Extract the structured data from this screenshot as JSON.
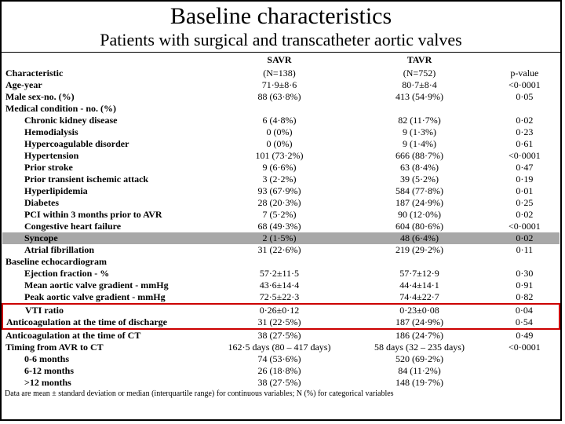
{
  "title": "Baseline characteristics",
  "subtitle": "Patients with surgical and transcatheter aortic valves",
  "headers": {
    "savr": "SAVR",
    "tavr": "TAVR"
  },
  "rows": [
    {
      "label": "Characteristic",
      "savr": "(N=138)",
      "tavr": "(N=752)",
      "p": "p-value",
      "bold": true
    },
    {
      "label": "Age-year",
      "savr": "71·9±8·6",
      "tavr": "80·7±8·4",
      "p": "<0·0001",
      "bold": true
    },
    {
      "label": "Male sex-no. (%)",
      "savr": "88 (63·8%)",
      "tavr": "413 (54·9%)",
      "p": "0·05",
      "bold": true
    },
    {
      "label": "Medical condition - no. (%)",
      "savr": "",
      "tavr": "",
      "p": "",
      "bold": true
    },
    {
      "label": "Chronic kidney disease",
      "savr": "6 (4·8%)",
      "tavr": "82 (11·7%)",
      "p": "0·02",
      "bold": true,
      "indent": true
    },
    {
      "label": "Hemodialysis",
      "savr": "0 (0%)",
      "tavr": "9 (1·3%)",
      "p": "0·23",
      "bold": true,
      "indent": true
    },
    {
      "label": "Hypercoagulable disorder",
      "savr": "0 (0%)",
      "tavr": "9 (1·4%)",
      "p": "0·61",
      "bold": true,
      "indent": true
    },
    {
      "label": "Hypertension",
      "savr": "101 (73·2%)",
      "tavr": "666 (88·7%)",
      "p": "<0·0001",
      "bold": true,
      "indent": true
    },
    {
      "label": "Prior stroke",
      "savr": "9 (6·6%)",
      "tavr": "63 (8·4%)",
      "p": "0·47",
      "bold": true,
      "indent": true
    },
    {
      "label": "Prior transient ischemic attack",
      "savr": "3 (2·2%)",
      "tavr": "39 (5·2%)",
      "p": "0·19",
      "bold": true,
      "indent": true
    },
    {
      "label": "Hyperlipidemia",
      "savr": "93 (67·9%)",
      "tavr": "584 (77·8%)",
      "p": "0·01",
      "bold": true,
      "indent": true
    },
    {
      "label": "Diabetes",
      "savr": "28 (20·3%)",
      "tavr": "187 (24·9%)",
      "p": "0·25",
      "bold": true,
      "indent": true
    },
    {
      "label": "PCI within 3 months prior to AVR",
      "savr": "7 (5·2%)",
      "tavr": "90 (12·0%)",
      "p": "0·02",
      "bold": true,
      "indent": true
    },
    {
      "label": "Congestive heart failure",
      "savr": "68 (49·3%)",
      "tavr": "604 (80·6%)",
      "p": "<0·0001",
      "bold": true,
      "indent": true
    },
    {
      "label": "Syncope",
      "savr": "2 (1·5%)",
      "tavr": "48 (6·4%)",
      "p": "0·02",
      "bold": true,
      "indent": true,
      "gray": true
    },
    {
      "label": "Atrial fibrillation",
      "savr": "31 (22·6%)",
      "tavr": "219 (29·2%)",
      "p": "0·11",
      "bold": true,
      "indent": true
    },
    {
      "label": "Baseline echocardiogram",
      "savr": "",
      "tavr": "",
      "p": "",
      "bold": true
    },
    {
      "label": "Ejection fraction - %",
      "savr": "57·2±11·5",
      "tavr": "57·7±12·9",
      "p": "0·30",
      "bold": true,
      "indent": true
    },
    {
      "label": "Mean aortic valve gradient - mmHg",
      "savr": "43·6±14·4",
      "tavr": "44·4±14·1",
      "p": "0·91",
      "bold": true,
      "indent": true
    },
    {
      "label": "Peak aortic valve gradient - mmHg",
      "savr": "72·5±22·3",
      "tavr": "74·4±22·7",
      "p": "0·82",
      "bold": true,
      "indent": true
    },
    {
      "label": "VTI ratio",
      "savr": "0·26±0·12",
      "tavr": "0·23±0·08",
      "p": "0·04",
      "bold": true,
      "indent": true,
      "redtop": true
    },
    {
      "label": "Anticoagulation at the time of discharge",
      "savr": "31 (22·5%)",
      "tavr": "187 (24·9%)",
      "p": "0·54",
      "bold": true,
      "redbottom": true
    },
    {
      "label": "Anticoagulation at the time of CT",
      "savr": "38 (27·5%)",
      "tavr": "186 (24·7%)",
      "p": "0·49",
      "bold": true
    },
    {
      "label": "Timing from AVR to CT",
      "savr": "162·5 days (80 – 417 days)",
      "tavr": "58 days (32 – 235 days)",
      "p": "<0·0001",
      "bold": true
    },
    {
      "label": "0-6 months",
      "savr": "74 (53·6%)",
      "tavr": "520 (69·2%)",
      "p": "",
      "bold": true,
      "indent": true
    },
    {
      "label": "6-12 months",
      "savr": "26 (18·8%)",
      "tavr": "84 (11·2%)",
      "p": "",
      "bold": true,
      "indent": true
    },
    {
      "label": ">12 months",
      "savr": "38 (27·5%)",
      "tavr": "148 (19·7%)",
      "p": "",
      "bold": true,
      "indent": true
    }
  ],
  "footnote": "Data are mean ± standard deviation or median (interquartile range) for continuous variables; N (%) for categorical variables"
}
